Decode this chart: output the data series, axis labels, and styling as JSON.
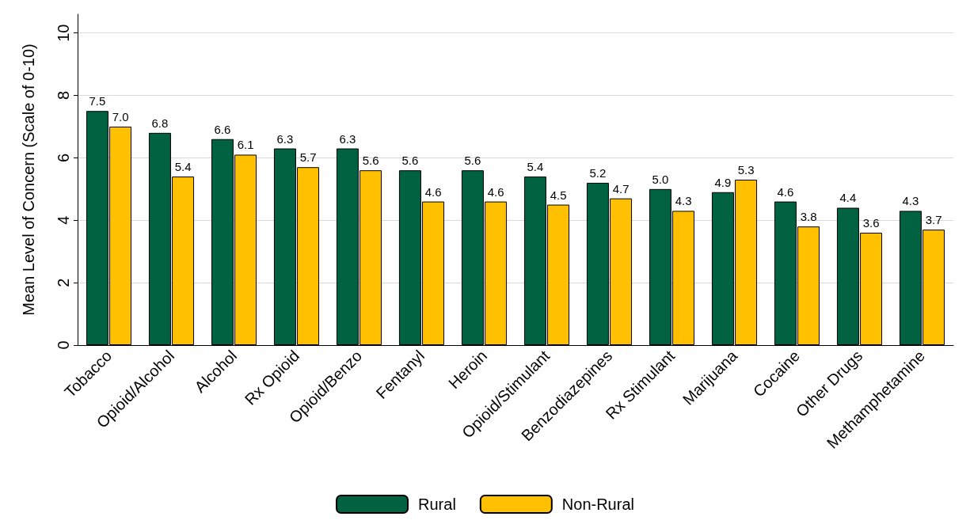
{
  "chart_data": {
    "type": "bar",
    "ylabel": "Mean Level of Concern (Scale of 0-10)",
    "categories": [
      "Tobacco",
      "Opioid/Alcohol",
      "Alcohol",
      "Rx Opioid",
      "Opioid/Benzo",
      "Fentanyl",
      "Heroin",
      "Opioid/Stimulant",
      "Benzodiazepines",
      "Rx Stimulant",
      "Marijuana",
      "Cocaine",
      "Other Drugs",
      "Methamphetamine"
    ],
    "series": [
      {
        "name": "Rural",
        "color": "#006241",
        "values": [
          7.5,
          6.8,
          6.6,
          6.3,
          6.3,
          5.6,
          5.6,
          5.4,
          5.2,
          5.0,
          4.9,
          4.6,
          4.4,
          4.3
        ],
        "value_labels": [
          "7.5",
          "6.8",
          "6.6",
          "6.3",
          "6.3",
          "5.6",
          "5.6",
          "5.4",
          "5.2",
          "5.0",
          "4.9",
          "4.6",
          "4.4",
          "4.3"
        ]
      },
      {
        "name": "Non-Rural",
        "color": "#ffc000",
        "values": [
          7.0,
          5.4,
          6.1,
          5.7,
          5.6,
          4.6,
          4.6,
          4.5,
          4.7,
          4.3,
          5.3,
          3.8,
          3.6,
          3.7
        ],
        "value_labels": [
          "7.0",
          "5.4",
          "6.1",
          "5.7",
          "5.6",
          "4.6",
          "4.6",
          "4.5",
          "4.7",
          "4.3",
          "5.3",
          "3.8",
          "3.6",
          "3.7"
        ]
      }
    ],
    "ylim": [
      0,
      10.6
    ],
    "yticks": [
      0,
      2,
      4,
      6,
      8,
      10
    ],
    "grid": "y",
    "legend": "bottom"
  }
}
